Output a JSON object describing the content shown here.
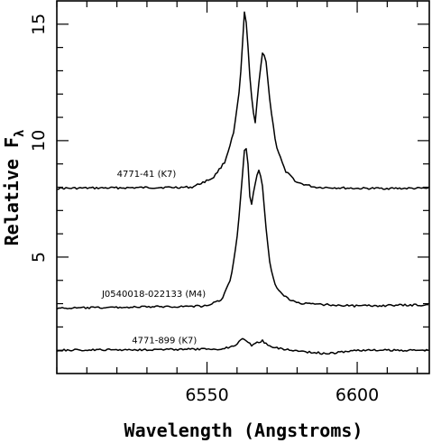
{
  "chart_data": {
    "type": "line",
    "xlabel": "Wavelength (Angstroms)",
    "ylabel_main": "Relative F",
    "ylabel_sub": "λ",
    "xlim": [
      6500,
      6624
    ],
    "ylim": [
      0,
      16
    ],
    "xticks": [
      6550,
      6600
    ],
    "xtick_labels": [
      "6550",
      "6600"
    ],
    "xminor_step": 10,
    "yticks": [
      5,
      10,
      15
    ],
    "ytick_labels": [
      "5",
      "10",
      "15"
    ],
    "yminor_step": 1,
    "grid": false,
    "series": [
      {
        "name": "4771-41  (K7)",
        "label_pos": {
          "x": 6520,
          "y": 8.45
        },
        "baseline": 7.95,
        "x": [
          6500,
          6545,
          6552,
          6556,
          6559,
          6561,
          6562.5,
          6563.3,
          6564.5,
          6566,
          6567.2,
          6568.5,
          6569.6,
          6571,
          6573,
          6576,
          6580,
          6586,
          6600,
          6624
        ],
        "y": [
          7.95,
          8.0,
          8.4,
          9.1,
          10.4,
          12.4,
          15.6,
          14.8,
          12.2,
          10.7,
          12.4,
          13.8,
          13.5,
          11.6,
          9.8,
          8.7,
          8.2,
          8.0,
          7.95,
          7.95
        ]
      },
      {
        "name": "J0540018-022133  (M4)",
        "label_pos": {
          "x": 6515,
          "y": 3.3
        },
        "baseline": 2.8,
        "x": [
          6500,
          6550,
          6555,
          6558,
          6560,
          6561.5,
          6562.7,
          6563.5,
          6564.5,
          6566.2,
          6567.4,
          6568.5,
          6569.5,
          6571,
          6573,
          6577,
          6582,
          6600,
          6624
        ],
        "y": [
          2.8,
          2.9,
          3.2,
          4.1,
          5.8,
          8.0,
          10.0,
          9.3,
          7.0,
          8.3,
          8.8,
          8.0,
          6.4,
          4.6,
          3.7,
          3.2,
          3.0,
          2.9,
          2.95
        ]
      },
      {
        "name": "4771-899  (K7)",
        "label_pos": {
          "x": 6525,
          "y": 1.3
        },
        "baseline": 1.0,
        "x": [
          6500,
          6555,
          6559,
          6561.5,
          6562.5,
          6563.5,
          6565,
          6567,
          6568.5,
          6570,
          6573,
          6578,
          6582,
          6590,
          6600,
          6624
        ],
        "y": [
          1.0,
          1.05,
          1.2,
          1.45,
          1.5,
          1.35,
          1.2,
          1.35,
          1.4,
          1.25,
          1.1,
          1.0,
          0.95,
          0.85,
          1.0,
          1.0
        ]
      }
    ]
  }
}
